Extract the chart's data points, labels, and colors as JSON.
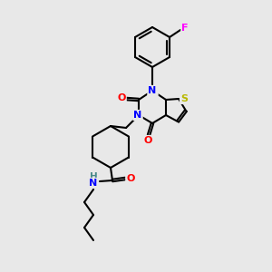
{
  "bg_color": "#e8e8e8",
  "atom_colors": {
    "N": "#0000ff",
    "O": "#ff0000",
    "S": "#b8b800",
    "F": "#ff00ff",
    "H": "#4a8a8a",
    "C": "#000000"
  },
  "figsize": [
    3.0,
    3.0
  ],
  "dpi": 100
}
